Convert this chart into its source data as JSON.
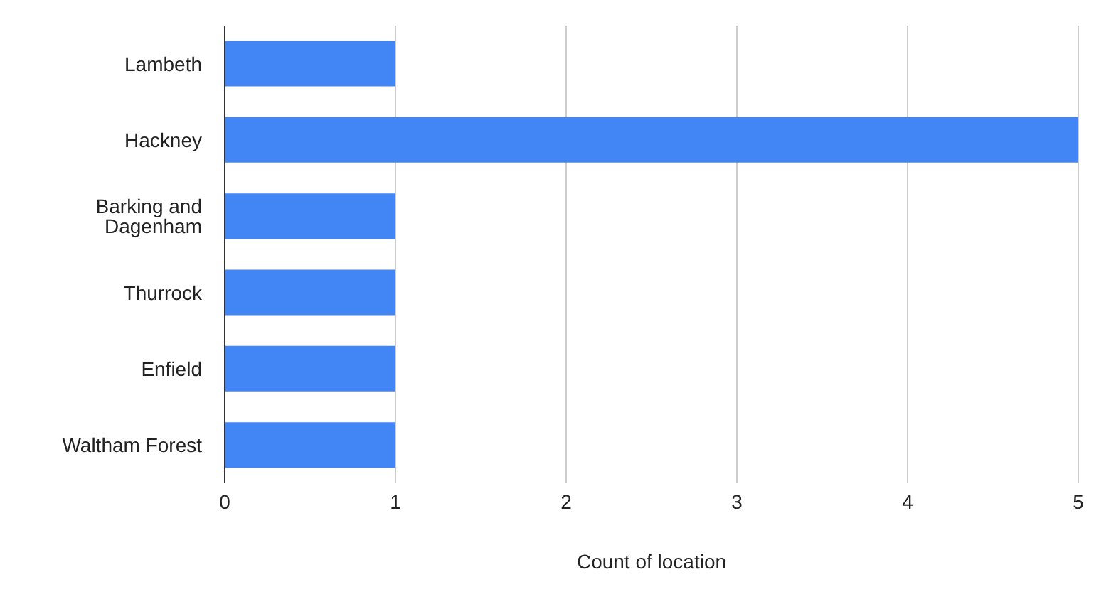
{
  "chart_data": {
    "type": "bar",
    "orientation": "horizontal",
    "categories": [
      "Lambeth",
      "Hackney",
      "Barking and Dagenham",
      "Thurrock",
      "Enfield",
      "Waltham Forest"
    ],
    "values": [
      1,
      5,
      1,
      1,
      1,
      1
    ],
    "color": "#4285f4",
    "xlim": [
      0,
      5
    ],
    "xticks": [
      0,
      1,
      2,
      3,
      4,
      5
    ],
    "xlabel": "Count of location",
    "grid": "x"
  }
}
